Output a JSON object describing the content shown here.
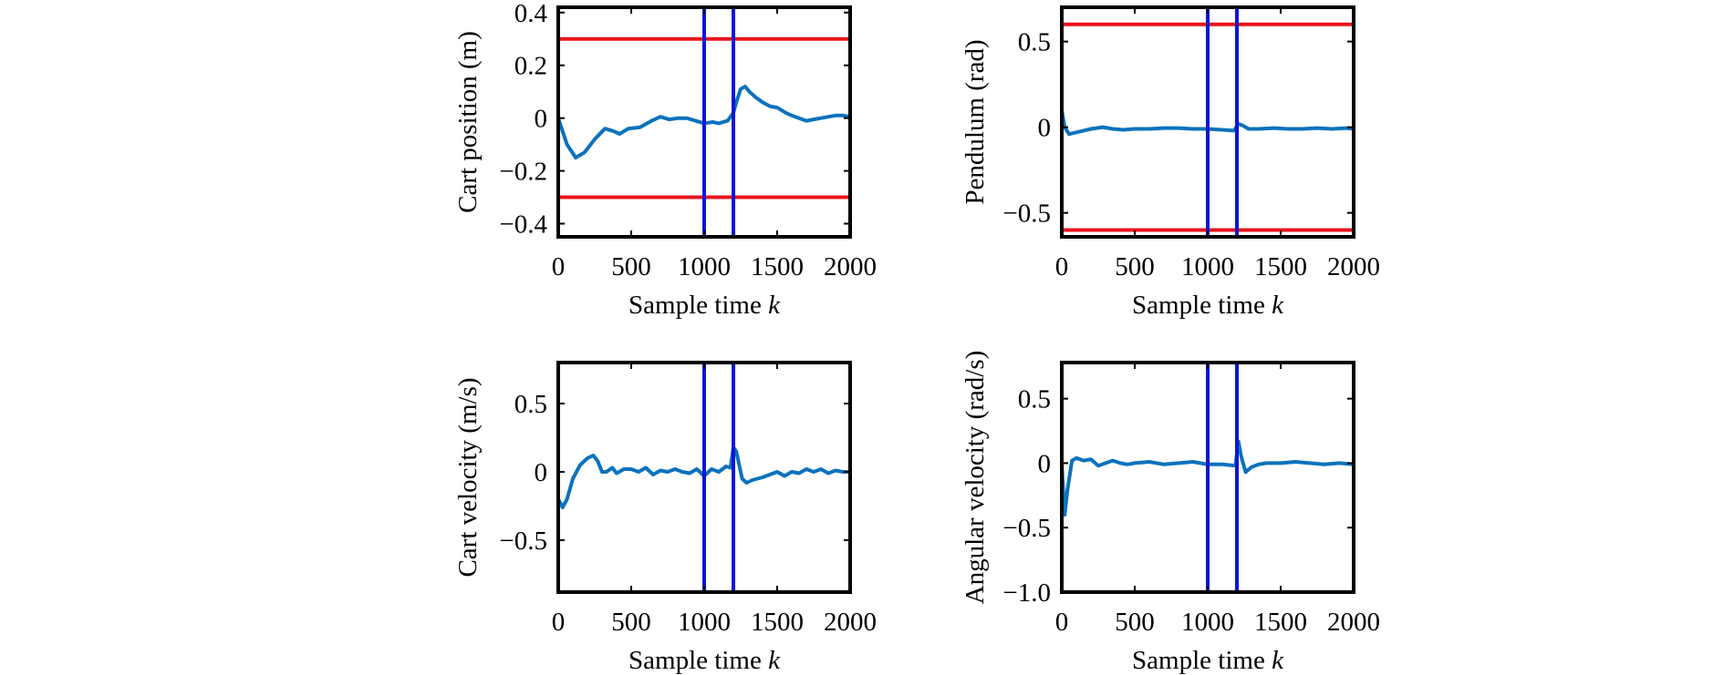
{
  "chart_data": [
    {
      "type": "line",
      "ylabel": "Cart position (m)",
      "xlabel": "Sample time",
      "xlabel_var": "k",
      "xlim": [
        0,
        2000
      ],
      "ylim": [
        -0.45,
        0.42
      ],
      "xticks": [
        "0",
        "500",
        "1000",
        "1500",
        "2000"
      ],
      "yticks": [
        "−0.4",
        "−0.2",
        "0",
        "0.2",
        "0.4"
      ],
      "hlines": [
        0.3,
        -0.3
      ],
      "vlines": [
        1000,
        1200
      ],
      "colors": {
        "series": "#0b72bd",
        "hline": "#e8141b",
        "vline": "#0a14d6"
      },
      "series": [
        {
          "x": [
            0,
            60,
            120,
            180,
            250,
            320,
            380,
            420,
            480,
            560,
            640,
            700,
            760,
            820,
            880,
            940,
            1000,
            1060,
            1100,
            1160,
            1200,
            1220,
            1250,
            1280,
            1310,
            1350,
            1400,
            1450,
            1500,
            1560,
            1600,
            1650,
            1700,
            1750,
            1800,
            1850,
            1900,
            1950,
            2000
          ],
          "y": [
            0.0,
            -0.1,
            -0.15,
            -0.13,
            -0.08,
            -0.04,
            -0.05,
            -0.06,
            -0.04,
            -0.035,
            -0.01,
            0.005,
            -0.005,
            0.0,
            0.0,
            -0.01,
            -0.02,
            -0.015,
            -0.02,
            -0.01,
            0.02,
            0.06,
            0.11,
            0.12,
            0.1,
            0.08,
            0.06,
            0.045,
            0.04,
            0.02,
            0.01,
            0.0,
            -0.01,
            -0.005,
            0.0,
            0.005,
            0.01,
            0.01,
            0.005
          ]
        }
      ]
    },
    {
      "type": "line",
      "ylabel": "Pendulum (rad)",
      "xlabel": "Sample time",
      "xlabel_var": "k",
      "xlim": [
        0,
        2000
      ],
      "ylim": [
        -0.64,
        0.7
      ],
      "xticks": [
        "0",
        "500",
        "1000",
        "1500",
        "2000"
      ],
      "yticks": [
        "−0.5",
        "0",
        "0.5"
      ],
      "hlines": [
        0.6,
        -0.6
      ],
      "vlines": [
        1000,
        1200
      ],
      "colors": {
        "series": "#0b72bd",
        "hline": "#e8141b",
        "vline": "#0a14d6"
      },
      "series": [
        {
          "x": [
            0,
            20,
            50,
            100,
            150,
            200,
            280,
            350,
            420,
            500,
            600,
            700,
            800,
            900,
            1000,
            1100,
            1180,
            1210,
            1240,
            1280,
            1350,
            1450,
            1550,
            1650,
            1750,
            1850,
            1950,
            2000
          ],
          "y": [
            0.1,
            0.0,
            -0.04,
            -0.03,
            -0.02,
            -0.01,
            0.0,
            -0.01,
            -0.015,
            -0.01,
            -0.01,
            -0.005,
            -0.005,
            -0.01,
            -0.01,
            -0.015,
            -0.02,
            0.02,
            0.01,
            -0.01,
            -0.01,
            -0.005,
            -0.01,
            -0.01,
            -0.005,
            -0.01,
            -0.005,
            -0.01
          ]
        }
      ]
    },
    {
      "type": "line",
      "ylabel": "Cart velocity (m/s)",
      "xlabel": "Sample time",
      "xlabel_var": "k",
      "xlim": [
        0,
        2000
      ],
      "ylim": [
        -0.88,
        0.8
      ],
      "xticks": [
        "0",
        "500",
        "1000",
        "1500",
        "2000"
      ],
      "yticks": [
        "−0.5",
        "0",
        "0.5"
      ],
      "hlines": [],
      "vlines": [
        1000,
        1200
      ],
      "colors": {
        "series": "#0b72bd",
        "hline": "#e8141b",
        "vline": "#0a14d6"
      },
      "series": [
        {
          "x": [
            0,
            30,
            60,
            100,
            150,
            200,
            240,
            270,
            300,
            330,
            370,
            400,
            450,
            500,
            550,
            600,
            650,
            700,
            750,
            800,
            850,
            900,
            950,
            1000,
            1050,
            1100,
            1150,
            1180,
            1200,
            1220,
            1240,
            1260,
            1290,
            1330,
            1400,
            1450,
            1500,
            1550,
            1600,
            1650,
            1700,
            1750,
            1800,
            1850,
            1900,
            1950,
            2000
          ],
          "y": [
            -0.2,
            -0.26,
            -0.2,
            -0.05,
            0.05,
            0.1,
            0.12,
            0.08,
            0.0,
            0.0,
            0.03,
            -0.01,
            0.02,
            0.02,
            0.0,
            0.03,
            -0.02,
            0.01,
            0.0,
            0.02,
            0.0,
            -0.01,
            0.02,
            -0.03,
            0.02,
            0.0,
            0.04,
            0.03,
            0.18,
            0.15,
            0.05,
            -0.05,
            -0.08,
            -0.06,
            -0.04,
            -0.02,
            0.0,
            -0.03,
            0.0,
            -0.01,
            0.02,
            0.0,
            0.02,
            -0.01,
            0.01,
            0.0,
            0.0
          ]
        }
      ]
    },
    {
      "type": "line",
      "ylabel": "Angular velocity (rad/s)",
      "xlabel": "Sample time",
      "xlabel_var": "k",
      "xlim": [
        0,
        2000
      ],
      "ylim": [
        -1.0,
        0.78
      ],
      "xticks": [
        "0",
        "500",
        "1000",
        "1500",
        "2000"
      ],
      "yticks": [
        "−1.0",
        "−0.5",
        "0",
        "0.5"
      ],
      "hlines": [],
      "vlines": [
        1000,
        1200
      ],
      "colors": {
        "series": "#0b72bd",
        "hline": "#e8141b",
        "vline": "#0a14d6"
      },
      "series": [
        {
          "x": [
            0,
            20,
            40,
            70,
            100,
            150,
            200,
            250,
            300,
            350,
            400,
            450,
            500,
            600,
            700,
            800,
            900,
            1000,
            1100,
            1190,
            1210,
            1230,
            1260,
            1300,
            1350,
            1400,
            1500,
            1600,
            1700,
            1800,
            1900,
            2000
          ],
          "y": [
            0.0,
            -0.4,
            -0.2,
            0.02,
            0.04,
            0.02,
            0.03,
            -0.02,
            0.0,
            0.02,
            0.0,
            -0.01,
            0.0,
            0.01,
            -0.01,
            0.0,
            0.01,
            -0.01,
            -0.01,
            -0.02,
            0.17,
            0.05,
            -0.07,
            -0.03,
            -0.01,
            0.0,
            0.0,
            0.01,
            0.0,
            -0.01,
            0.0,
            -0.01
          ]
        }
      ]
    }
  ]
}
